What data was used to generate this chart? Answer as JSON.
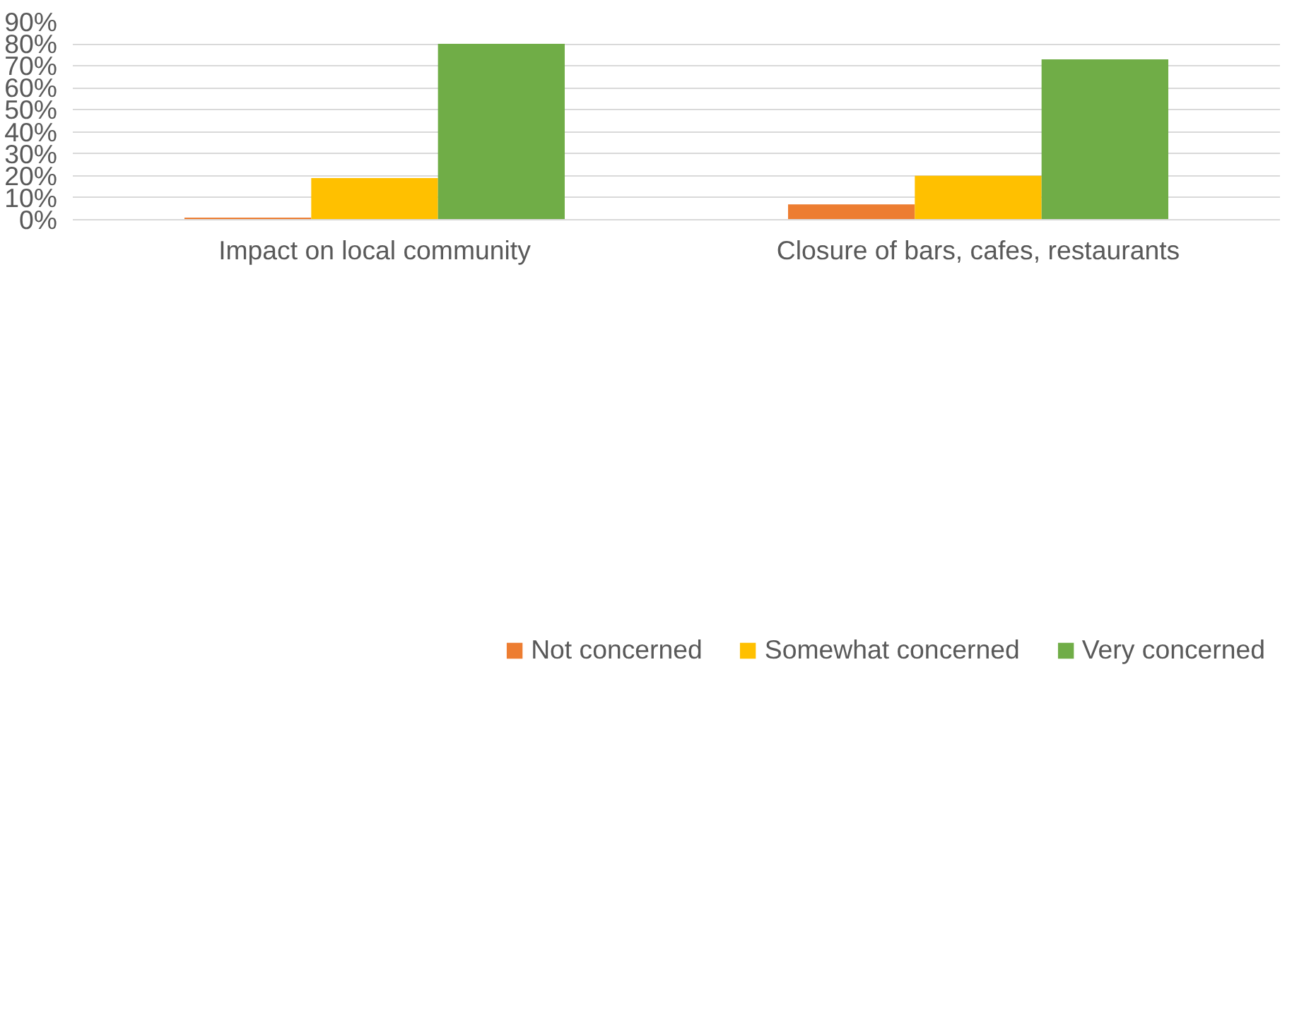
{
  "chart_data": {
    "type": "bar",
    "categories": [
      "Impact on local community",
      "Closure of bars, cafes, restaurants"
    ],
    "series": [
      {
        "name": "Not concerned",
        "color": "#ed7d31",
        "values": [
          1,
          7
        ]
      },
      {
        "name": "Somewhat concerned",
        "color": "#ffc000",
        "values": [
          19,
          20
        ]
      },
      {
        "name": "Very concerned",
        "color": "#70ad47",
        "values": [
          80,
          73
        ]
      }
    ],
    "ylim": [
      0,
      90
    ],
    "yticks": [
      {
        "value": 0,
        "label": "0%"
      },
      {
        "value": 10,
        "label": "10%"
      },
      {
        "value": 20,
        "label": "20%"
      },
      {
        "value": 30,
        "label": "30%"
      },
      {
        "value": 40,
        "label": "40%"
      },
      {
        "value": 50,
        "label": "50%"
      },
      {
        "value": 60,
        "label": "60%"
      },
      {
        "value": 70,
        "label": "70%"
      },
      {
        "value": 80,
        "label": "80%"
      },
      {
        "value": 90,
        "label": "90%"
      }
    ],
    "grid": "y",
    "legend": "bottom"
  }
}
